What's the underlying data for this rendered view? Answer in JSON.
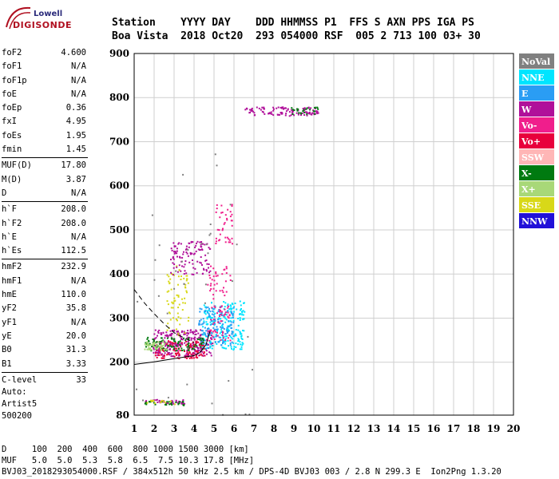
{
  "logo": {
    "line1": "Lowell",
    "line2": "DIGISONDE"
  },
  "header": {
    "row1": "Station    YYYY DAY    DDD HHMMSS P1  FFS S AXN PPS IGA PS",
    "row2": "Boa Vista  2018 Oct20  293 054000 RSF  005 2 713 100 03+ 30"
  },
  "params": [
    [
      {
        "label": "foF2",
        "value": "4.600"
      },
      {
        "label": "foF1",
        "value": "N/A"
      },
      {
        "label": "foF1p",
        "value": "N/A"
      },
      {
        "label": "foE",
        "value": "N/A"
      },
      {
        "label": "foEp",
        "value": "0.36"
      },
      {
        "label": "fxI",
        "value": "4.95"
      },
      {
        "label": "foEs",
        "value": "1.95"
      },
      {
        "label": "fmin",
        "value": "1.45"
      }
    ],
    [
      {
        "label": "MUF(D)",
        "value": "17.80"
      },
      {
        "label": "M(D)",
        "value": "3.87"
      },
      {
        "label": "D",
        "value": "N/A"
      }
    ],
    [
      {
        "label": "h`F",
        "value": "208.0"
      },
      {
        "label": "h`F2",
        "value": "208.0"
      },
      {
        "label": "h`E",
        "value": "N/A"
      },
      {
        "label": "h`Es",
        "value": "112.5"
      }
    ],
    [
      {
        "label": "hmF2",
        "value": "232.9"
      },
      {
        "label": "hmF1",
        "value": "N/A"
      },
      {
        "label": "hmE",
        "value": "110.0"
      },
      {
        "label": "yF2",
        "value": "35.8"
      },
      {
        "label": "yF1",
        "value": "N/A"
      },
      {
        "label": "yE",
        "value": "20.0"
      },
      {
        "label": "B0",
        "value": "31.3"
      },
      {
        "label": "B1",
        "value": "3.33"
      }
    ],
    [
      {
        "label": "C-level",
        "value": "33"
      }
    ]
  ],
  "auto": {
    "line1": "Auto:",
    "line2": "Artist5",
    "line3": "500200"
  },
  "footer": {
    "row1": "D     100  200  400  600  800 1000 1500 3000 [km]",
    "row2": "MUF   5.0  5.0  5.3  5.8  6.5  7.5 10.3 17.8 [MHz]",
    "row3": "BVJ03_2018293054000.RSF / 384x512h 50 kHz 2.5 km / DPS-4D BVJ03 003 / 2.8 N 299.3 E  Ion2Png 1.3.20"
  },
  "chart_data": {
    "type": "scatter",
    "xlim": [
      1,
      20
    ],
    "ylim": [
      80,
      900
    ],
    "x_ticks": [
      1,
      2,
      3,
      4,
      5,
      6,
      7,
      8,
      9,
      10,
      11,
      12,
      13,
      14,
      15,
      16,
      17,
      18,
      19,
      20
    ],
    "y_ticks": [
      80,
      200,
      300,
      400,
      500,
      600,
      700,
      800,
      900
    ],
    "grid": true,
    "legend_placement": "right",
    "legend": [
      {
        "name": "NoVal",
        "color": "#808080"
      },
      {
        "name": "NNE",
        "color": "#00e5ff"
      },
      {
        "name": "E",
        "color": "#2a9df4"
      },
      {
        "name": "W",
        "color": "#b0109a"
      },
      {
        "name": "Vo-",
        "color": "#f01e8c"
      },
      {
        "name": "Vo+",
        "color": "#e8003c"
      },
      {
        "name": "SSW",
        "color": "#ffb6b6"
      },
      {
        "name": "X-",
        "color": "#007a10"
      },
      {
        "name": "X+",
        "color": "#a8d878"
      },
      {
        "name": "SSE",
        "color": "#d8d818"
      },
      {
        "name": "NNW",
        "color": "#2010d8"
      }
    ],
    "clusters": [
      {
        "color": "#b0109a",
        "x0": 1.9,
        "x1": 4.9,
        "y0": 215,
        "y1": 275,
        "n": 260
      },
      {
        "color": "#00e5ff",
        "x0": 4.4,
        "x1": 6.5,
        "y0": 230,
        "y1": 340,
        "n": 220
      },
      {
        "color": "#2a9df4",
        "x0": 4.2,
        "x1": 6.0,
        "y0": 240,
        "y1": 330,
        "n": 120
      },
      {
        "color": "#e8003c",
        "x0": 2.0,
        "x1": 4.5,
        "y0": 210,
        "y1": 250,
        "n": 120
      },
      {
        "color": "#f01e8c",
        "x0": 4.6,
        "x1": 5.8,
        "y0": 250,
        "y1": 420,
        "n": 90
      },
      {
        "color": "#007a10",
        "x0": 1.5,
        "x1": 4.5,
        "y0": 228,
        "y1": 258,
        "n": 90
      },
      {
        "color": "#d8d818",
        "x0": 2.6,
        "x1": 3.7,
        "y0": 260,
        "y1": 420,
        "n": 70
      },
      {
        "color": "#a8d878",
        "x0": 1.5,
        "x1": 2.6,
        "y0": 228,
        "y1": 250,
        "n": 50
      },
      {
        "color": "#b0109a",
        "x0": 2.8,
        "x1": 4.8,
        "y0": 400,
        "y1": 475,
        "n": 110
      },
      {
        "color": "#f01e8c",
        "x0": 5.0,
        "x1": 5.9,
        "y0": 470,
        "y1": 560,
        "n": 40
      },
      {
        "color": "#b0109a",
        "x0": 6.5,
        "x1": 10.2,
        "y0": 760,
        "y1": 780,
        "n": 110
      },
      {
        "color": "#007a10",
        "x0": 8.8,
        "x1": 10.2,
        "y0": 762,
        "y1": 780,
        "n": 25
      },
      {
        "color": "#b0109a",
        "x0": 1.5,
        "x1": 3.5,
        "y0": 107,
        "y1": 117,
        "n": 40
      },
      {
        "color": "#007a10",
        "x0": 1.5,
        "x1": 3.5,
        "y0": 104,
        "y1": 113,
        "n": 30
      },
      {
        "color": "#d8d818",
        "x0": 1.5,
        "x1": 3.0,
        "y0": 105,
        "y1": 115,
        "n": 15
      },
      {
        "color": "#808080",
        "x0": 1.0,
        "x1": 7.0,
        "y0": 80,
        "y1": 690,
        "n": 40
      }
    ],
    "traces": {
      "dashed": [
        [
          1,
          365
        ],
        [
          1.5,
          335
        ],
        [
          2,
          310
        ],
        [
          2.5,
          287
        ],
        [
          3,
          267
        ],
        [
          3.5,
          255
        ],
        [
          4,
          245
        ]
      ],
      "solid": [
        [
          1,
          195
        ],
        [
          2,
          201
        ],
        [
          3,
          208
        ],
        [
          4,
          215
        ],
        [
          4.3,
          222
        ],
        [
          4.6,
          240
        ],
        [
          4.8,
          270
        ]
      ]
    }
  }
}
